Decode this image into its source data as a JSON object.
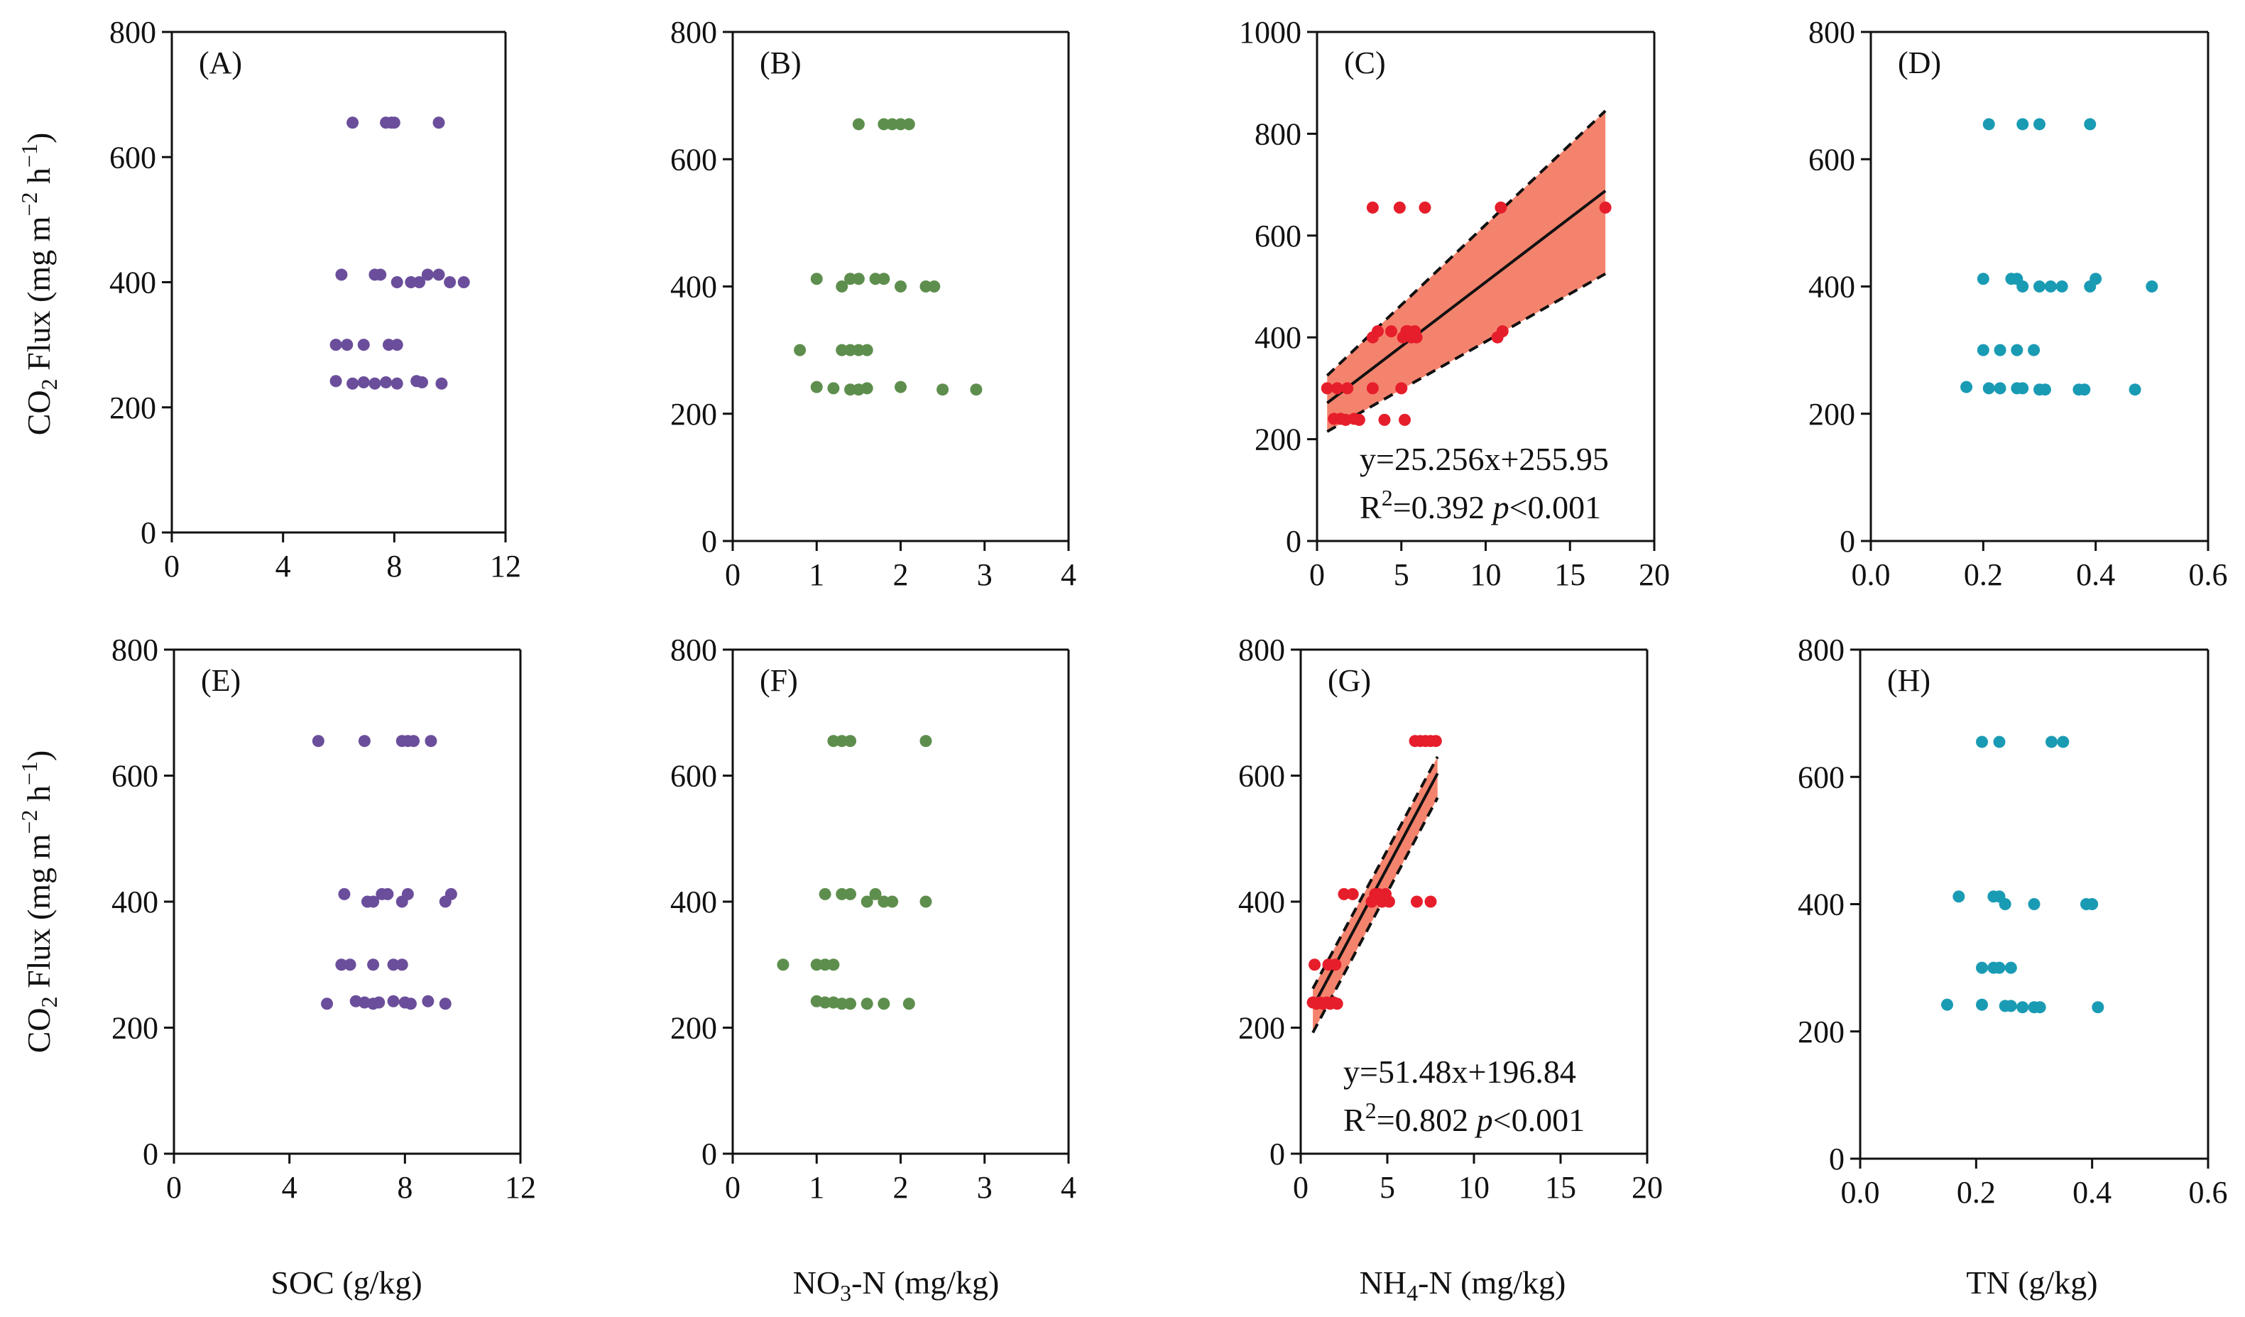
{
  "figure": {
    "ylabel_main": "CO",
    "ylabel_sub": "2",
    "ylabel_rest": " Flux (mg m",
    "ylabel_sup1": "−2",
    "ylabel_mid": " h",
    "ylabel_sup2": "−1",
    "ylabel_end": ")",
    "xlabels": {
      "soc": "SOC (g/kg)",
      "no3": {
        "pre": "NO",
        "sub": "3",
        "post": "-N (mg/kg)"
      },
      "nh4": {
        "pre": "NH",
        "sub": "4",
        "post": "-N (mg/kg)"
      },
      "tn": "TN (g/kg)"
    }
  },
  "chart_data": [
    {
      "id": "A",
      "type": "scatter",
      "panel_label": "(A)",
      "color": "#6B4E9B",
      "xlim": [
        0,
        12
      ],
      "ylim": [
        0,
        800
      ],
      "xticks": [
        "0",
        "4",
        "8",
        "12"
      ],
      "yticks": [
        "0",
        "200",
        "400",
        "600",
        "800"
      ],
      "points": [
        [
          6.5,
          655
        ],
        [
          7.7,
          655
        ],
        [
          7.9,
          655
        ],
        [
          8.0,
          655
        ],
        [
          9.6,
          655
        ],
        [
          6.1,
          412
        ],
        [
          7.3,
          412
        ],
        [
          7.5,
          412
        ],
        [
          8.1,
          400
        ],
        [
          8.6,
          400
        ],
        [
          8.9,
          400
        ],
        [
          9.2,
          412
        ],
        [
          9.6,
          412
        ],
        [
          10.0,
          400
        ],
        [
          10.5,
          400
        ],
        [
          5.9,
          300
        ],
        [
          6.3,
          300
        ],
        [
          6.9,
          300
        ],
        [
          7.8,
          300
        ],
        [
          8.1,
          300
        ],
        [
          5.9,
          242
        ],
        [
          6.5,
          238
        ],
        [
          6.9,
          240
        ],
        [
          7.3,
          238
        ],
        [
          7.7,
          240
        ],
        [
          8.1,
          238
        ],
        [
          8.8,
          242
        ],
        [
          9.0,
          240
        ],
        [
          9.7,
          238
        ]
      ]
    },
    {
      "id": "B",
      "type": "scatter",
      "panel_label": "(B)",
      "color": "#5E8E4E",
      "xlim": [
        0,
        4
      ],
      "ylim": [
        0,
        800
      ],
      "xticks": [
        "0",
        "1",
        "2",
        "3",
        "4"
      ],
      "yticks": [
        "0",
        "200",
        "400",
        "600",
        "800"
      ],
      "points": [
        [
          1.5,
          655
        ],
        [
          1.8,
          655
        ],
        [
          1.9,
          655
        ],
        [
          2.0,
          655
        ],
        [
          2.1,
          655
        ],
        [
          1.0,
          412
        ],
        [
          1.3,
          400
        ],
        [
          1.4,
          412
        ],
        [
          1.5,
          412
        ],
        [
          1.7,
          412
        ],
        [
          1.8,
          412
        ],
        [
          2.0,
          400
        ],
        [
          2.3,
          400
        ],
        [
          2.4,
          400
        ],
        [
          0.8,
          300
        ],
        [
          1.3,
          300
        ],
        [
          1.4,
          300
        ],
        [
          1.5,
          300
        ],
        [
          1.6,
          300
        ],
        [
          1.0,
          242
        ],
        [
          1.2,
          240
        ],
        [
          1.4,
          238
        ],
        [
          1.5,
          238
        ],
        [
          1.6,
          240
        ],
        [
          2.0,
          242
        ],
        [
          2.5,
          238
        ],
        [
          2.9,
          238
        ]
      ]
    },
    {
      "id": "C",
      "type": "scatter",
      "panel_label": "(C)",
      "color": "#E61E2B",
      "xlim": [
        0,
        20
      ],
      "ylim": [
        0,
        1000
      ],
      "xticks": [
        "0",
        "5",
        "10",
        "15",
        "20"
      ],
      "yticks": [
        "0",
        "200",
        "400",
        "600",
        "800",
        "1000"
      ],
      "points": [
        [
          3.3,
          655
        ],
        [
          4.9,
          655
        ],
        [
          6.4,
          655
        ],
        [
          10.9,
          655
        ],
        [
          17.1,
          655
        ],
        [
          3.3,
          400
        ],
        [
          3.6,
          412
        ],
        [
          4.4,
          412
        ],
        [
          5.1,
          400
        ],
        [
          5.3,
          412
        ],
        [
          5.4,
          412
        ],
        [
          5.6,
          400
        ],
        [
          5.8,
          412
        ],
        [
          5.9,
          400
        ],
        [
          10.7,
          400
        ],
        [
          11.0,
          412
        ],
        [
          0.6,
          300
        ],
        [
          1.2,
          300
        ],
        [
          1.8,
          300
        ],
        [
          3.3,
          300
        ],
        [
          5.0,
          300
        ],
        [
          1.0,
          240
        ],
        [
          1.4,
          240
        ],
        [
          1.7,
          238
        ],
        [
          2.2,
          240
        ],
        [
          2.5,
          238
        ],
        [
          4.0,
          238
        ],
        [
          5.2,
          238
        ]
      ],
      "regression": {
        "slope": 25.256,
        "intercept": 255.95,
        "x_range": [
          0.6,
          17.1
        ],
        "ci_low": [
          215,
          525
        ],
        "ci_high": [
          325,
          845
        ]
      },
      "annotation": {
        "eq": "y=25.256x+255.95",
        "r2_pre": "R",
        "r2_sup": "2",
        "r2_val": "=0.392 ",
        "p_label": "p",
        "p_val": "<0.001"
      }
    },
    {
      "id": "D",
      "type": "scatter",
      "panel_label": "(D)",
      "color": "#1A9BB4",
      "xlim": [
        0.0,
        0.6
      ],
      "ylim": [
        0,
        800
      ],
      "xticks": [
        "0.0",
        "0.2",
        "0.4",
        "0.6"
      ],
      "yticks": [
        "0",
        "200",
        "400",
        "600",
        "800"
      ],
      "points": [
        [
          0.21,
          655
        ],
        [
          0.27,
          655
        ],
        [
          0.3,
          655
        ],
        [
          0.39,
          655
        ],
        [
          0.2,
          412
        ],
        [
          0.25,
          412
        ],
        [
          0.26,
          412
        ],
        [
          0.27,
          400
        ],
        [
          0.3,
          400
        ],
        [
          0.32,
          400
        ],
        [
          0.34,
          400
        ],
        [
          0.39,
          400
        ],
        [
          0.4,
          412
        ],
        [
          0.5,
          400
        ],
        [
          0.2,
          300
        ],
        [
          0.23,
          300
        ],
        [
          0.26,
          300
        ],
        [
          0.29,
          300
        ],
        [
          0.17,
          242
        ],
        [
          0.21,
          240
        ],
        [
          0.23,
          240
        ],
        [
          0.26,
          240
        ],
        [
          0.27,
          240
        ],
        [
          0.3,
          238
        ],
        [
          0.31,
          238
        ],
        [
          0.37,
          238
        ],
        [
          0.38,
          238
        ],
        [
          0.47,
          238
        ]
      ]
    },
    {
      "id": "E",
      "type": "scatter",
      "panel_label": "(E)",
      "color": "#6B4E9B",
      "xlim": [
        0,
        12
      ],
      "ylim": [
        0,
        800
      ],
      "xticks": [
        "0",
        "4",
        "8",
        "12"
      ],
      "yticks": [
        "0",
        "200",
        "400",
        "600",
        "800"
      ],
      "points": [
        [
          5.0,
          655
        ],
        [
          6.6,
          655
        ],
        [
          7.9,
          655
        ],
        [
          8.1,
          655
        ],
        [
          8.3,
          655
        ],
        [
          8.9,
          655
        ],
        [
          5.9,
          412
        ],
        [
          6.7,
          400
        ],
        [
          6.9,
          400
        ],
        [
          7.2,
          412
        ],
        [
          7.4,
          412
        ],
        [
          7.9,
          400
        ],
        [
          8.1,
          412
        ],
        [
          9.4,
          400
        ],
        [
          9.6,
          412
        ],
        [
          5.8,
          300
        ],
        [
          6.1,
          300
        ],
        [
          6.9,
          300
        ],
        [
          7.6,
          300
        ],
        [
          7.9,
          300
        ],
        [
          5.3,
          238
        ],
        [
          6.3,
          242
        ],
        [
          6.6,
          240
        ],
        [
          6.9,
          238
        ],
        [
          7.1,
          240
        ],
        [
          7.6,
          242
        ],
        [
          8.0,
          240
        ],
        [
          8.2,
          238
        ],
        [
          8.8,
          242
        ],
        [
          9.4,
          238
        ]
      ]
    },
    {
      "id": "F",
      "type": "scatter",
      "panel_label": "(F)",
      "color": "#5E8E4E",
      "xlim": [
        0,
        4
      ],
      "ylim": [
        0,
        800
      ],
      "xticks": [
        "0",
        "1",
        "2",
        "3",
        "4"
      ],
      "yticks": [
        "0",
        "200",
        "400",
        "600",
        "800"
      ],
      "points": [
        [
          1.2,
          655
        ],
        [
          1.3,
          655
        ],
        [
          1.4,
          655
        ],
        [
          2.3,
          655
        ],
        [
          1.1,
          412
        ],
        [
          1.3,
          412
        ],
        [
          1.4,
          412
        ],
        [
          1.6,
          400
        ],
        [
          1.7,
          412
        ],
        [
          1.8,
          400
        ],
        [
          1.9,
          400
        ],
        [
          2.3,
          400
        ],
        [
          0.6,
          300
        ],
        [
          1.0,
          300
        ],
        [
          1.1,
          300
        ],
        [
          1.2,
          300
        ],
        [
          1.0,
          242
        ],
        [
          1.1,
          240
        ],
        [
          1.2,
          240
        ],
        [
          1.3,
          238
        ],
        [
          1.4,
          238
        ],
        [
          1.6,
          238
        ],
        [
          1.8,
          238
        ],
        [
          2.1,
          238
        ]
      ]
    },
    {
      "id": "G",
      "type": "scatter",
      "panel_label": "(G)",
      "color": "#E61E2B",
      "xlim": [
        0,
        20
      ],
      "ylim": [
        0,
        800
      ],
      "xticks": [
        "0",
        "5",
        "10",
        "15",
        "20"
      ],
      "yticks": [
        "0",
        "200",
        "400",
        "600",
        "800"
      ],
      "points": [
        [
          6.6,
          655
        ],
        [
          6.9,
          655
        ],
        [
          7.2,
          655
        ],
        [
          7.5,
          655
        ],
        [
          7.8,
          655
        ],
        [
          2.5,
          412
        ],
        [
          3.0,
          412
        ],
        [
          4.1,
          400
        ],
        [
          4.3,
          412
        ],
        [
          4.5,
          412
        ],
        [
          4.7,
          400
        ],
        [
          4.9,
          412
        ],
        [
          5.1,
          400
        ],
        [
          6.7,
          400
        ],
        [
          7.5,
          400
        ],
        [
          0.8,
          300
        ],
        [
          1.6,
          300
        ],
        [
          2.0,
          300
        ],
        [
          0.7,
          240
        ],
        [
          0.9,
          238
        ],
        [
          1.1,
          240
        ],
        [
          1.3,
          238
        ],
        [
          1.5,
          240
        ],
        [
          1.7,
          238
        ],
        [
          1.9,
          240
        ],
        [
          2.1,
          238
        ]
      ],
      "regression": {
        "slope": 51.48,
        "intercept": 196.84,
        "x_range": [
          0.7,
          7.9
        ],
        "ci_low": [
          192,
          565
        ],
        "ci_high": [
          262,
          630
        ]
      },
      "annotation": {
        "eq": "y=51.48x+196.84",
        "r2_pre": "R",
        "r2_sup": "2",
        "r2_val": "=0.802 ",
        "p_label": "p",
        "p_val": "<0.001"
      }
    },
    {
      "id": "H",
      "type": "scatter",
      "panel_label": "(H)",
      "color": "#1A9BB4",
      "xlim": [
        0.0,
        0.6
      ],
      "ylim": [
        0,
        800
      ],
      "xticks": [
        "0.0",
        "0.2",
        "0.4",
        "0.6"
      ],
      "yticks": [
        "0",
        "200",
        "400",
        "600",
        "800"
      ],
      "points": [
        [
          0.21,
          655
        ],
        [
          0.24,
          655
        ],
        [
          0.33,
          655
        ],
        [
          0.35,
          655
        ],
        [
          0.17,
          412
        ],
        [
          0.23,
          412
        ],
        [
          0.24,
          412
        ],
        [
          0.25,
          400
        ],
        [
          0.3,
          400
        ],
        [
          0.39,
          400
        ],
        [
          0.4,
          400
        ],
        [
          0.21,
          300
        ],
        [
          0.23,
          300
        ],
        [
          0.24,
          300
        ],
        [
          0.26,
          300
        ],
        [
          0.15,
          242
        ],
        [
          0.21,
          242
        ],
        [
          0.25,
          240
        ],
        [
          0.26,
          240
        ],
        [
          0.28,
          238
        ],
        [
          0.3,
          238
        ],
        [
          0.31,
          238
        ],
        [
          0.41,
          238
        ]
      ]
    }
  ]
}
